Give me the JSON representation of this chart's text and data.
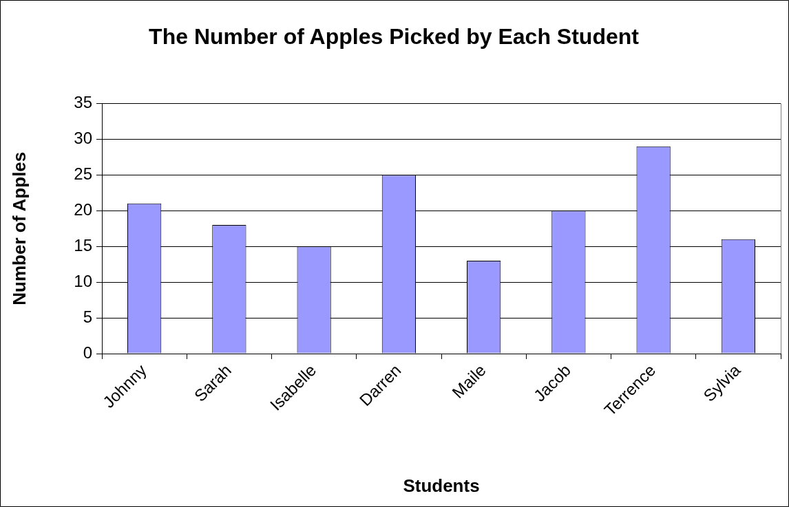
{
  "chart_data": {
    "type": "bar",
    "title": "The Number of Apples Picked by Each Student",
    "xlabel": "Students",
    "ylabel": "Number of Apples",
    "categories": [
      "Johnny",
      "Sarah",
      "Isabelle",
      "Darren",
      "Maile",
      "Jacob",
      "Terrence",
      "Sylvia"
    ],
    "values": [
      21,
      18,
      15,
      25,
      13,
      20,
      29,
      16
    ],
    "color": "#9999ff",
    "ylim": [
      0,
      35
    ],
    "yticks": [
      0,
      5,
      10,
      15,
      20,
      25,
      30,
      35
    ],
    "grid": "y",
    "legend": false
  }
}
